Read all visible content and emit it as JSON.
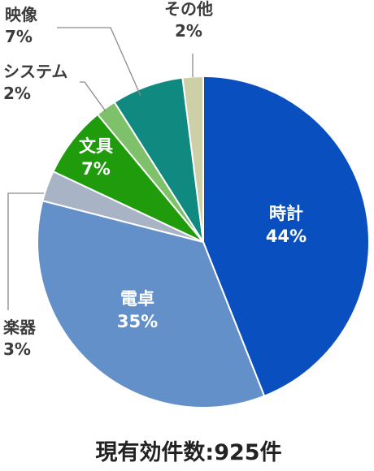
{
  "chart_data": {
    "type": "pie",
    "slices": [
      {
        "label": "時計",
        "value": 44,
        "value_label": "44%",
        "color": "#0a4fc0"
      },
      {
        "label": "電卓",
        "value": 35,
        "value_label": "35%",
        "color": "#6390c8"
      },
      {
        "label": "楽器",
        "value": 3,
        "value_label": "3%",
        "color": "#a8b4c6"
      },
      {
        "label": "文具",
        "value": 7,
        "value_label": "7%",
        "color": "#1f9b0c"
      },
      {
        "label": "システム",
        "value": 2,
        "value_label": "2%",
        "color": "#7fc06b"
      },
      {
        "label": "映像",
        "value": 7,
        "value_label": "7%",
        "color": "#108a80"
      },
      {
        "label": "その他",
        "value": 2,
        "value_label": "2%",
        "color": "#cdcfa6"
      }
    ],
    "caption": "現有効件数:925件"
  }
}
